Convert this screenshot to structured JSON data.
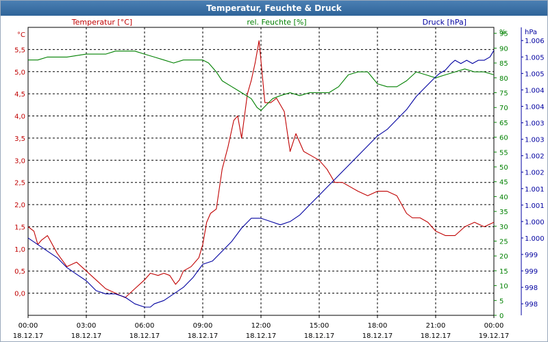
{
  "window": {
    "title": "Temperatur, Feuchte & Druck"
  },
  "colors": {
    "temperature": "#c00000",
    "humidity": "#008000",
    "pressure": "#0000a0",
    "grid": "#000000",
    "title_bg": "#3a6ea5"
  },
  "chart_data": {
    "type": "line",
    "grid": true,
    "x_tick_labels": [
      [
        "00:00",
        "18.12.17"
      ],
      [
        "03:00",
        "18.12.17"
      ],
      [
        "06:00",
        "18.12.17"
      ],
      [
        "09:00",
        "18.12.17"
      ],
      [
        "12:00",
        "18.12.17"
      ],
      [
        "15:00",
        "18.12.17"
      ],
      [
        "18:00",
        "18.12.17"
      ],
      [
        "21:00",
        "18.12.17"
      ],
      [
        "00:00",
        "19.12.17"
      ]
    ],
    "x_range_hours": [
      0,
      24
    ],
    "axes": {
      "temperature": {
        "unit": "°C",
        "range": [
          -0.5,
          6.0
        ],
        "ticks": [
          "0,0",
          "0,5",
          "1,0",
          "1,5",
          "2,0",
          "2,5",
          "3,0",
          "3,5",
          "4,0",
          "4,5",
          "5,0",
          "5,5"
        ]
      },
      "humidity": {
        "unit": "%",
        "range": [
          0,
          97
        ],
        "ticks": [
          "0",
          "5",
          "10",
          "15",
          "20",
          "25",
          "30",
          "35",
          "40",
          "45",
          "50",
          "55",
          "60",
          "65",
          "70",
          "75",
          "80",
          "85",
          "90",
          "95"
        ]
      },
      "pressure": {
        "unit": "hPa",
        "range": [
          997.65,
          1006.4
        ],
        "ticks": [
          "998",
          "998",
          "999",
          "999",
          "1.000",
          "1.000",
          "1.001",
          "1.001",
          "1.002",
          "1.002",
          "1.003",
          "1.003",
          "1.004",
          "1.004",
          "1.005",
          "1.005",
          "1.006"
        ]
      }
    },
    "series": [
      {
        "name": "Temperatur [°C]",
        "axis": "temperature",
        "color": "#c00000",
        "x": [
          0,
          0.3,
          0.5,
          0.7,
          1,
          1.5,
          2,
          2.5,
          3,
          3.5,
          4,
          4.5,
          5,
          5.5,
          6,
          6.3,
          6.7,
          7,
          7.3,
          7.6,
          7.8,
          8,
          8.4,
          8.8,
          9,
          9.2,
          9.4,
          9.7,
          10,
          10.3,
          10.6,
          10.8,
          11,
          11.3,
          11.5,
          11.7,
          11.9,
          12.2,
          12.5,
          12.8,
          13.2,
          13.5,
          13.8,
          14.2,
          14.6,
          15,
          15.4,
          15.8,
          16.2,
          16.6,
          17,
          17.5,
          18,
          18.5,
          19,
          19.5,
          19.8,
          20.2,
          20.6,
          21,
          21.5,
          22,
          22.5,
          23,
          23.5,
          24
        ],
        "y": [
          1.5,
          1.4,
          1.1,
          1.2,
          1.3,
          0.9,
          0.6,
          0.7,
          0.5,
          0.3,
          0.1,
          0,
          -0.1,
          0.1,
          0.3,
          0.45,
          0.4,
          0.45,
          0.4,
          0.2,
          0.3,
          0.5,
          0.6,
          0.8,
          1.1,
          1.6,
          1.8,
          1.9,
          2.8,
          3.3,
          3.9,
          4.0,
          3.5,
          4.5,
          4.8,
          5.2,
          5.7,
          4.3,
          4.3,
          4.4,
          4.1,
          3.2,
          3.6,
          3.2,
          3.1,
          3.0,
          2.8,
          2.5,
          2.5,
          2.4,
          2.3,
          2.2,
          2.3,
          2.3,
          2.2,
          1.8,
          1.7,
          1.7,
          1.6,
          1.4,
          1.3,
          1.3,
          1.5,
          1.6,
          1.5,
          1.6
        ]
      },
      {
        "name": "rel. Feuchte [%]",
        "axis": "humidity",
        "color": "#008000",
        "x": [
          0,
          0.5,
          1,
          1.5,
          2,
          3,
          4,
          4.5,
          5,
          5.5,
          6,
          6.5,
          7,
          7.5,
          8,
          8.5,
          9,
          9.3,
          9.7,
          10,
          10.5,
          11,
          11.5,
          11.8,
          12,
          12.3,
          12.6,
          13,
          13.5,
          14,
          14.5,
          15,
          15.5,
          16,
          16.5,
          17,
          17.5,
          18,
          18.5,
          19,
          19.5,
          20,
          20.5,
          21,
          21.5,
          22,
          22.5,
          23,
          23.5,
          24
        ],
        "y": [
          86,
          86,
          87,
          87,
          87,
          88,
          88,
          89,
          89,
          89,
          88,
          87,
          86,
          85,
          86,
          86,
          86,
          85,
          82,
          79,
          77,
          75,
          73,
          70,
          69,
          71,
          73,
          74,
          75,
          74,
          75,
          75,
          75,
          77,
          81,
          82,
          82,
          78,
          77,
          77,
          79,
          82,
          81,
          80,
          81,
          82,
          83,
          82,
          82,
          81
        ]
      },
      {
        "name": "Druck [hPa]",
        "axis": "pressure",
        "color": "#0000a0",
        "x": [
          0,
          0.5,
          1,
          1.5,
          2,
          2.5,
          3,
          3.5,
          4,
          4.5,
          5,
          5.5,
          6,
          6.3,
          6.5,
          7,
          7.5,
          8,
          8.5,
          9,
          9.5,
          10,
          10.5,
          11,
          11.5,
          12,
          12.5,
          13,
          13.5,
          14,
          14.5,
          15,
          15.5,
          16,
          16.5,
          17,
          17.5,
          18,
          18.5,
          19,
          19.5,
          20,
          20.5,
          21,
          21.2,
          21.5,
          21.8,
          22,
          22.3,
          22.6,
          22.9,
          23.2,
          23.5,
          23.8,
          24
        ],
        "y": [
          1000.0,
          999.8,
          999.6,
          999.4,
          999.1,
          998.9,
          998.7,
          998.4,
          998.3,
          998.3,
          998.2,
          998.0,
          997.9,
          997.9,
          998.0,
          998.1,
          998.3,
          998.5,
          998.8,
          999.2,
          999.3,
          999.6,
          999.9,
          1000.3,
          1000.6,
          1000.6,
          1000.5,
          1000.4,
          1000.5,
          1000.7,
          1001.0,
          1001.3,
          1001.6,
          1001.9,
          1002.2,
          1002.5,
          1002.8,
          1003.1,
          1003.3,
          1003.6,
          1003.9,
          1004.3,
          1004.6,
          1004.9,
          1005.0,
          1005.1,
          1005.3,
          1005.4,
          1005.3,
          1005.4,
          1005.3,
          1005.4,
          1005.4,
          1005.5,
          1005.7
        ]
      }
    ]
  }
}
